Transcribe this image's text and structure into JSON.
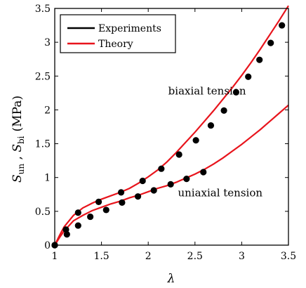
{
  "chart_data": {
    "type": "scatter",
    "xlabel": "λ",
    "ylabel": "S_un , S_bi (MPa)",
    "ylabel_parts": {
      "s1": "S",
      "sub1": "un",
      "sep": " , ",
      "s2": "S",
      "sub2": "bi",
      "unit": "(MPa)"
    },
    "xlim": [
      1,
      3.5
    ],
    "ylim": [
      0,
      3.5
    ],
    "xticks": [
      "1",
      "1.5",
      "2",
      "2.5",
      "3",
      "3.5"
    ],
    "yticks": [
      "0",
      "0.5",
      "1",
      "1.5",
      "2",
      "2.5",
      "3",
      "3.5"
    ],
    "grid": false,
    "legend_position": "top-left",
    "legend": [
      {
        "label": "Experiments",
        "color": "#000000"
      },
      {
        "label": "Theory",
        "color": "#e8141c"
      }
    ],
    "annotations": [
      {
        "text": "biaxial tension",
        "x": 2.63,
        "y": 2.23
      },
      {
        "text": "uniaxial tension",
        "x": 2.77,
        "y": 0.72
      }
    ],
    "series": [
      {
        "name": "Experiments",
        "kind": "points",
        "color": "#000000",
        "x": [
          1.0,
          1.12,
          1.25,
          1.47,
          1.71,
          1.94,
          2.14,
          2.33,
          2.51,
          2.67,
          2.81,
          2.94,
          3.07,
          3.19,
          3.31,
          3.43
        ],
        "y": [
          0.0,
          0.23,
          0.48,
          0.64,
          0.78,
          0.95,
          1.13,
          1.34,
          1.55,
          1.77,
          1.99,
          2.26,
          2.49,
          2.74,
          2.99,
          3.25
        ]
      },
      {
        "name": "Experiments",
        "kind": "points",
        "color": "#000000",
        "x": [
          1.0,
          1.13,
          1.25,
          1.38,
          1.55,
          1.72,
          1.89,
          2.06,
          2.24,
          2.41,
          2.59
        ],
        "y": [
          0.0,
          0.16,
          0.29,
          0.42,
          0.52,
          0.63,
          0.72,
          0.81,
          0.9,
          0.98,
          1.08
        ]
      },
      {
        "name": "Theory",
        "kind": "line",
        "color": "#e8141c",
        "x": [
          1.0,
          1.05,
          1.1,
          1.2,
          1.3,
          1.4,
          1.5,
          1.6,
          1.7,
          1.8,
          1.9,
          2.0,
          2.1,
          2.2,
          2.3,
          2.4,
          2.5,
          2.6,
          2.7,
          2.8,
          2.9,
          3.0,
          3.1,
          3.2,
          3.3,
          3.4,
          3.5
        ],
        "y": [
          0.0,
          0.14,
          0.27,
          0.44,
          0.55,
          0.62,
          0.68,
          0.73,
          0.78,
          0.84,
          0.92,
          1.01,
          1.11,
          1.23,
          1.37,
          1.52,
          1.67,
          1.83,
          1.99,
          2.16,
          2.33,
          2.51,
          2.7,
          2.9,
          3.11,
          3.32,
          3.54
        ]
      },
      {
        "name": "Theory",
        "kind": "line",
        "color": "#e8141c",
        "x": [
          1.0,
          1.05,
          1.1,
          1.2,
          1.3,
          1.4,
          1.5,
          1.6,
          1.7,
          1.8,
          1.9,
          2.0,
          2.1,
          2.2,
          2.3,
          2.4,
          2.5,
          2.6,
          2.7,
          2.8,
          2.9,
          3.0,
          3.1,
          3.2,
          3.3,
          3.4,
          3.5
        ],
        "y": [
          0.0,
          0.11,
          0.21,
          0.36,
          0.44,
          0.51,
          0.56,
          0.61,
          0.65,
          0.7,
          0.74,
          0.79,
          0.84,
          0.88,
          0.93,
          0.99,
          1.05,
          1.12,
          1.2,
          1.29,
          1.39,
          1.49,
          1.6,
          1.71,
          1.83,
          1.95,
          2.07
        ]
      }
    ]
  }
}
